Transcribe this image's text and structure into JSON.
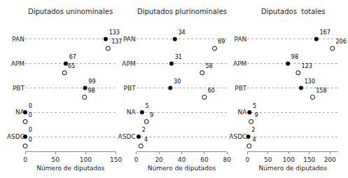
{
  "chart_data": [
    {
      "type": "scatter",
      "orientation": "horizontal",
      "title": "Diputados uninominales",
      "xlabel": "Número de diputados",
      "categories": [
        "PAN",
        "APM",
        "PBT",
        "NA",
        "ASDC"
      ],
      "series": [
        {
          "color": "black",
          "marker": "circle",
          "values": [
            133,
            67,
            99,
            0,
            0
          ]
        },
        {
          "color": "black",
          "marker": "circle-open",
          "values": [
            137,
            65,
            98,
            0,
            0
          ]
        }
      ],
      "xlim": [
        0,
        150
      ],
      "xticks": [
        0,
        50,
        100,
        150
      ],
      "grid": true,
      "data_labels": true
    },
    {
      "type": "scatter",
      "orientation": "horizontal",
      "title": "Diputados plurinominales",
      "xlabel": "Número de diputados",
      "categories": [
        "PAN",
        "APM",
        "PBT",
        "NA",
        "ASDC"
      ],
      "series": [
        {
          "color": "black",
          "marker": "circle",
          "values": [
            34,
            31,
            30,
            5,
            2
          ]
        },
        {
          "color": "black",
          "marker": "circle-open",
          "values": [
            69,
            58,
            60,
            9,
            4
          ]
        }
      ],
      "xlim": [
        0,
        80
      ],
      "xticks": [
        0,
        20,
        40,
        60,
        80
      ],
      "grid": true,
      "data_labels": true
    },
    {
      "type": "scatter",
      "orientation": "horizontal",
      "title": "Diputados  totales",
      "xlabel": "Número de diputados",
      "categories": [
        "PAN",
        "APM",
        "PBT",
        "NA",
        "ASDC"
      ],
      "series": [
        {
          "color": "black",
          "marker": "circle",
          "values": [
            167,
            98,
            130,
            5,
            2
          ]
        },
        {
          "color": "black",
          "marker": "circle-open",
          "values": [
            206,
            123,
            158,
            9,
            4
          ]
        }
      ],
      "xlim": [
        0,
        220
      ],
      "xticks": [
        0,
        50,
        100,
        150,
        200
      ],
      "grid": true,
      "data_labels": true
    }
  ]
}
